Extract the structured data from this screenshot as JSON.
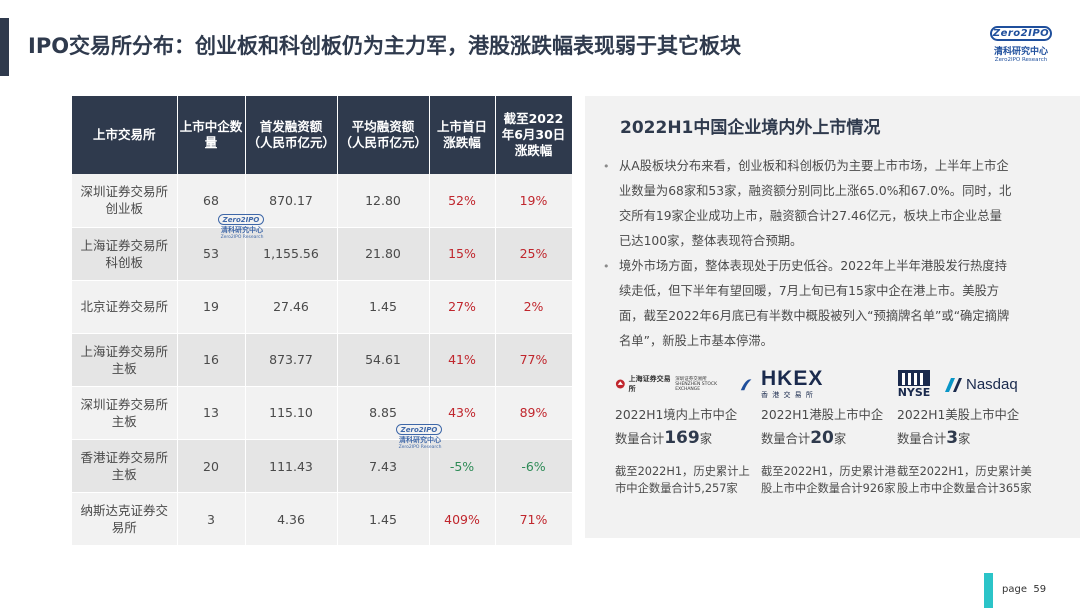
{
  "header": {
    "title": "IPO交易所分布：创业板和科创板仍为主力军，港股涨跌幅表现弱于其它板块",
    "logo": {
      "brand": "Zero2IPO",
      "cn": "清科研究中心",
      "en": "Zero2IPO Research"
    }
  },
  "table": {
    "headers": [
      "上市交易所",
      "上市中企数量",
      "首发融资额（人民币亿元）",
      "平均融资额（人民币亿元）",
      "上市首日涨跌幅",
      "截至2022年6月30日涨跌幅"
    ],
    "rows": [
      {
        "exchange": "深圳证券交易所创业板",
        "count": "68",
        "raised": "870.17",
        "avg": "12.80",
        "first_day": "52%",
        "to_date": "19%"
      },
      {
        "exchange": "上海证券交易所科创板",
        "count": "53",
        "raised": "1,155.56",
        "avg": "21.80",
        "first_day": "15%",
        "to_date": "25%"
      },
      {
        "exchange": "北京证券交易所",
        "count": "19",
        "raised": "27.46",
        "avg": "1.45",
        "first_day": "27%",
        "to_date": "2%"
      },
      {
        "exchange": "上海证券交易所主板",
        "count": "16",
        "raised": "873.77",
        "avg": "54.61",
        "first_day": "41%",
        "to_date": "77%"
      },
      {
        "exchange": "深圳证券交易所主板",
        "count": "13",
        "raised": "115.10",
        "avg": "8.85",
        "first_day": "43%",
        "to_date": "89%"
      },
      {
        "exchange": "香港证券交易所主板",
        "count": "20",
        "raised": "111.43",
        "avg": "7.43",
        "first_day": "-5%",
        "to_date": "-6%"
      },
      {
        "exchange": "纳斯达克证券交易所",
        "count": "3",
        "raised": "4.36",
        "avg": "1.45",
        "first_day": "409%",
        "to_date": "71%"
      }
    ],
    "colors": {
      "header_bg": "#2f3a4d",
      "positive": "#c0262d",
      "negative": "#2e8b57"
    }
  },
  "panel": {
    "title": "2022H1中国企业境内外上市情况",
    "bullets": [
      "从A股板块分布来看，创业板和科创板仍为主要上市市场，上半年上市企业数量为68家和53家，融资额分别同比上涨65.0%和67.0%。同时，北交所有19家企业成功上市，融资额合计27.46亿元，板块上市企业总量已达100家，整体表现符合预期。",
      "境外市场方面，整体表现处于历史低谷。2022年上半年港股发行热度持续走低，但下半年有望回暖，7月上旬已有15家中企在港上市。美股方面，截至2022年6月底已有半数中概股被列入“预摘牌名单”或“确定摘牌名单”，新股上市基本停滞。"
    ],
    "markets": [
      {
        "logo_a": "上海证券交易所",
        "logo_b": "深圳证券交易所",
        "logo_c": "SHENZHEN STOCK EXCHANGE",
        "line1": "2022H1境内上市中企",
        "prefix": "数量合计",
        "number": "169",
        "suffix": "家",
        "note": "截至2022H1，历史累计上市中企数量合计5,257家"
      },
      {
        "logo_a": "HKEX",
        "logo_b": "香 港 交 易 所",
        "line1": "2022H1港股上市中企",
        "prefix": "数量合计",
        "number": "20",
        "suffix": "家",
        "note": "截至2022H1，历史累计港股上市中企数量合计926家"
      },
      {
        "logo_a": "NYSE",
        "logo_b": "Nasdaq",
        "line1": "2022H1美股上市中企",
        "prefix": "数量合计",
        "number": "3",
        "suffix": "家",
        "note": "截至2022H1，历史累计美股上市中企数量合计365家"
      }
    ]
  },
  "footer": {
    "page_word": "page",
    "page_number": "59"
  }
}
